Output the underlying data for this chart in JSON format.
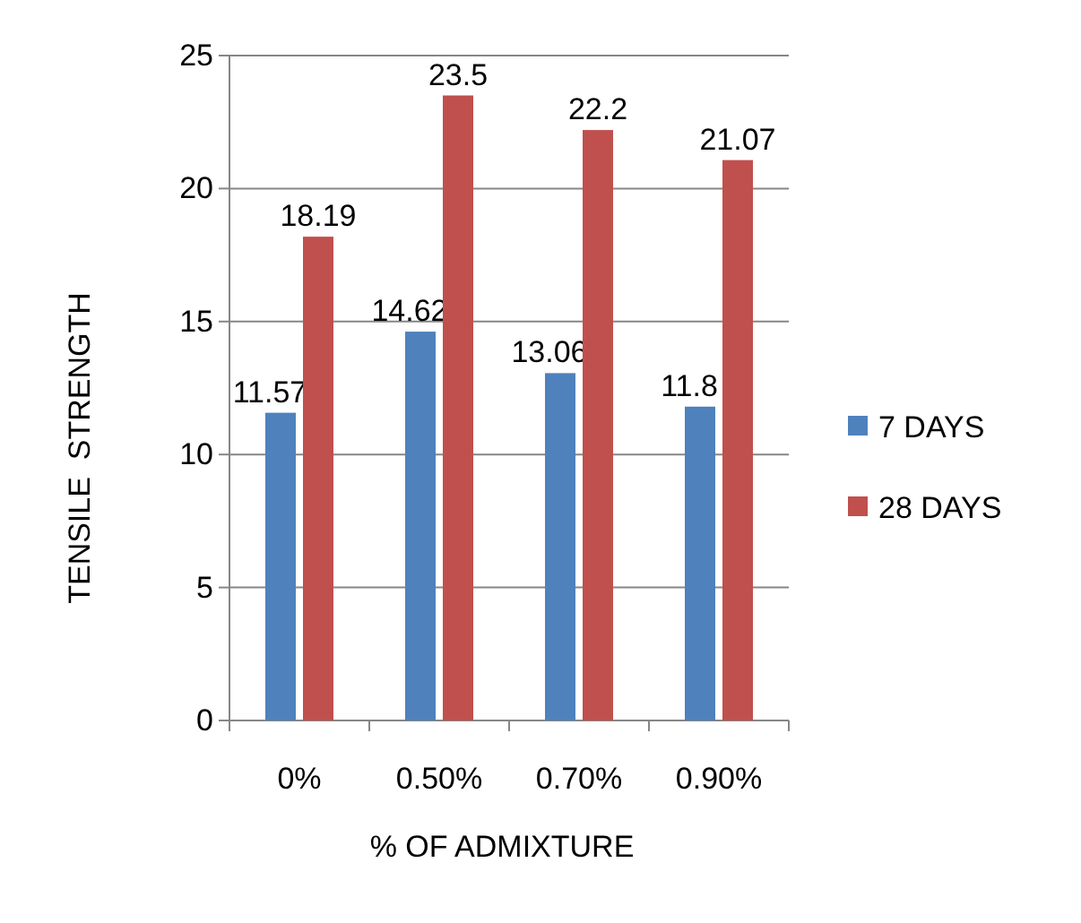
{
  "chart_data": {
    "type": "bar",
    "xlabel": "%  OF ADMIXTURE",
    "ylabel": "TENSILE  STRENGTH",
    "categories": [
      "0%",
      "0.50%",
      "0.70%",
      "0.90%"
    ],
    "series": [
      {
        "name": "7 DAYS",
        "color": "#4f81bd",
        "values": [
          11.57,
          14.62,
          13.06,
          11.8
        ]
      },
      {
        "name": "28 DAYS",
        "color": "#c0504d",
        "values": [
          18.19,
          23.5,
          22.2,
          21.07
        ]
      }
    ],
    "ylim": [
      0,
      25
    ],
    "yticks": [
      0,
      5,
      10,
      15,
      20,
      25
    ],
    "grid": "y",
    "legend": "right",
    "data_labels": true
  }
}
